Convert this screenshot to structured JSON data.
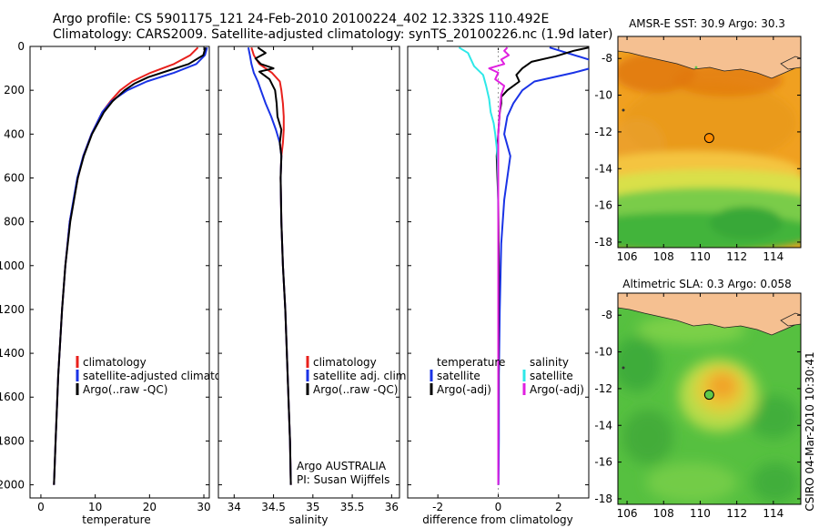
{
  "header": {
    "line1": "Argo profile: CS 5901175_121 24-Feb-2010 20100224_402 12.332S 110.492E",
    "line2": "Climatology: CARS2009. Satellite-adjusted climatology: synTS_20100226.nc (1.9d later)"
  },
  "credit": "CSIRO 04-Mar-2010 10:30:41",
  "colors": {
    "climatology": "#e8201c",
    "satellite": "#1a33e6",
    "argo": "#000000",
    "sal_satellite": "#2ee8e8",
    "sal_argo": "#e020e0",
    "land": "#f5c091"
  },
  "chart_data": [
    {
      "type": "line",
      "id": "temperature",
      "xlabel": "temperature",
      "ylabel": "",
      "xlim": [
        -2,
        31
      ],
      "ylim": [
        2060,
        0
      ],
      "xticks": [
        0,
        10,
        20,
        30
      ],
      "xticklabels": [
        "0",
        "10",
        "20",
        "30"
      ],
      "yticks": [
        0,
        200,
        400,
        600,
        800,
        1000,
        1200,
        1400,
        1600,
        1800,
        2000
      ],
      "yticklabels": [
        "0",
        "200",
        "400",
        "600",
        "800",
        "1000",
        "1200",
        "1400",
        "1600",
        "1800",
        "2000"
      ],
      "legend": [
        "climatology",
        "satellite-adjusted climatology",
        "Argo(..raw -QC)"
      ],
      "series": [
        {
          "name": "climatology",
          "color": "#e8201c",
          "depth": [
            5,
            40,
            80,
            120,
            160,
            200,
            250,
            300,
            400,
            500,
            600,
            800,
            1000,
            1200,
            1500,
            1800,
            2000
          ],
          "values": [
            28.9,
            27.5,
            24.5,
            20.2,
            16.8,
            14.6,
            12.8,
            11.3,
            9.3,
            7.8,
            6.8,
            5.3,
            4.5,
            3.9,
            3.2,
            2.7,
            2.4
          ]
        },
        {
          "name": "satellite-adjusted climatology",
          "color": "#1a33e6",
          "depth": [
            5,
            40,
            80,
            120,
            160,
            200,
            250,
            300,
            400,
            500,
            600,
            800,
            1000,
            1200,
            1500,
            1800,
            2000
          ],
          "values": [
            30.6,
            30.2,
            28.6,
            24.5,
            19.5,
            15.9,
            13.0,
            11.3,
            9.3,
            7.8,
            6.7,
            5.3,
            4.5,
            3.9,
            3.2,
            2.7,
            2.4
          ]
        },
        {
          "name": "Argo(..raw -QC)",
          "color": "#000000",
          "depth": [
            5,
            40,
            80,
            110,
            140,
            170,
            200,
            250,
            300,
            400,
            500,
            600,
            800,
            1000,
            1200,
            1500,
            1800,
            2000
          ],
          "values": [
            30.3,
            29.9,
            27.2,
            23.5,
            19.8,
            17.2,
            15.4,
            13.2,
            11.6,
            9.4,
            7.9,
            6.8,
            5.4,
            4.5,
            3.9,
            3.2,
            2.7,
            2.4
          ]
        }
      ]
    },
    {
      "type": "line",
      "id": "salinity",
      "xlabel": "salinity",
      "xlim": [
        33.8,
        36.1
      ],
      "ylim": [
        2060,
        0
      ],
      "xticks": [
        34,
        34.5,
        35,
        35.5,
        36
      ],
      "xticklabels": [
        "34",
        "34.5",
        "35",
        "35.5",
        "36"
      ],
      "legend": [
        "climatology",
        "satellite adj. clim.",
        "Argo(..raw -QC)"
      ],
      "annotation": [
        "Argo AUSTRALIA",
        "PI: Susan Wijffels"
      ],
      "series": [
        {
          "name": "climatology",
          "color": "#e8201c",
          "depth": [
            5,
            40,
            80,
            120,
            160,
            200,
            260,
            320,
            380,
            440,
            500,
            600,
            800,
            1000,
            1200,
            1500,
            1800,
            2000
          ],
          "values": [
            34.22,
            34.25,
            34.32,
            34.48,
            34.58,
            34.6,
            34.62,
            34.63,
            34.63,
            34.62,
            34.6,
            34.59,
            34.6,
            34.62,
            34.65,
            34.68,
            34.71,
            34.72
          ]
        },
        {
          "name": "satellite adj. clim.",
          "color": "#1a33e6",
          "depth": [
            5,
            40,
            80,
            120,
            160,
            200,
            260,
            320,
            380,
            440,
            500,
            600,
            800,
            1000,
            1200,
            1500,
            1800,
            2000
          ],
          "values": [
            34.18,
            34.2,
            34.22,
            34.25,
            34.3,
            34.34,
            34.4,
            34.47,
            34.53,
            34.58,
            34.6,
            34.59,
            34.6,
            34.62,
            34.65,
            34.68,
            34.71,
            34.72
          ]
        },
        {
          "name": "Argo(..raw -QC)",
          "color": "#000000",
          "depth": [
            5,
            30,
            55,
            80,
            100,
            115,
            150,
            200,
            260,
            320,
            380,
            440,
            500,
            600,
            800,
            1000,
            1200,
            1500,
            1800,
            2000
          ],
          "values": [
            34.3,
            34.4,
            34.27,
            34.34,
            34.5,
            34.32,
            34.45,
            34.52,
            34.54,
            34.55,
            34.6,
            34.58,
            34.6,
            34.59,
            34.6,
            34.62,
            34.65,
            34.68,
            34.71,
            34.72
          ]
        }
      ]
    },
    {
      "type": "line",
      "id": "difference",
      "xlabel": "difference from climatology",
      "xlim": [
        -3,
        3
      ],
      "ylim": [
        2060,
        0
      ],
      "xticks": [
        -2,
        0,
        2
      ],
      "xticklabels": [
        "-2",
        "0",
        "2"
      ],
      "legend_titles": [
        "temperature",
        "salinity"
      ],
      "legend": [
        "satellite",
        "Argo(-adj)",
        "satellite",
        "Argo(-adj)"
      ],
      "series": [
        {
          "name": "temperature satellite",
          "color": "#1a33e6",
          "depth": [
            5,
            60,
            90,
            120,
            160,
            200,
            260,
            320,
            400,
            500,
            700,
            900,
            1200,
            1500,
            1800,
            2000
          ],
          "values": [
            1.7,
            3.0,
            3.3,
            2.5,
            1.2,
            0.8,
            0.5,
            0.3,
            0.2,
            0.4,
            0.2,
            0.1,
            0.05,
            0.02,
            0.02,
            0.01
          ]
        },
        {
          "name": "temperature Argo(-adj)",
          "color": "#000000",
          "depth": [
            5,
            20,
            45,
            70,
            100,
            130,
            160,
            200,
            230,
            260,
            300,
            400,
            500,
            700,
            1000,
            1400,
            1800,
            2000
          ],
          "values": [
            3.0,
            2.5,
            1.9,
            1.1,
            0.8,
            0.6,
            0.7,
            0.3,
            0.1,
            0.1,
            0.05,
            0.0,
            -0.05,
            0.0,
            0.02,
            0.01,
            0.0,
            0.0
          ]
        },
        {
          "name": "salinity satellite",
          "color": "#2ee8e8",
          "depth": [
            5,
            30,
            60,
            90,
            130,
            180,
            240,
            300,
            350,
            400,
            460,
            520,
            600,
            800,
            1200,
            1600,
            2000
          ],
          "values": [
            -1.3,
            -1.0,
            -0.9,
            -0.8,
            -0.5,
            -0.4,
            -0.3,
            -0.25,
            -0.15,
            -0.1,
            -0.05,
            -0.02,
            -0.01,
            0.0,
            0.0,
            0.0,
            0.0
          ]
        },
        {
          "name": "salinity Argo(-adj)",
          "color": "#e020e0",
          "depth": [
            5,
            20,
            40,
            60,
            80,
            100,
            120,
            150,
            180,
            220,
            300,
            400,
            500,
            700,
            1000,
            1500,
            2000
          ],
          "values": [
            0.3,
            0.2,
            0.35,
            0.1,
            0.2,
            -0.3,
            0.0,
            -0.1,
            0.2,
            0.1,
            0.05,
            0.0,
            0.0,
            0.0,
            0.0,
            0.0,
            0.0
          ]
        }
      ]
    },
    {
      "type": "heatmap",
      "id": "sst_map",
      "title": "AMSR-E SST: 30.9 Argo: 30.3",
      "xlim": [
        105.5,
        115.5
      ],
      "ylim": [
        -18.3,
        -6.8
      ],
      "xticks": [
        106,
        108,
        110,
        112,
        114
      ],
      "xticklabels": [
        "106",
        "108",
        "110",
        "112",
        "114"
      ],
      "yticks": [
        -8,
        -10,
        -12,
        -14,
        -16,
        -18
      ],
      "yticklabels": [
        "-8",
        "-10",
        "-12",
        "-14",
        "-16",
        "-18"
      ],
      "marker": {
        "lon": 110.492,
        "lat": -12.332,
        "color": "#ff8c00"
      }
    },
    {
      "type": "heatmap",
      "id": "sla_map",
      "title": "Altimetric SLA: 0.3 Argo: 0.058",
      "xlim": [
        105.5,
        115.5
      ],
      "ylim": [
        -18.3,
        -6.8
      ],
      "xticks": [
        106,
        108,
        110,
        112,
        114
      ],
      "xticklabels": [
        "106",
        "108",
        "110",
        "112",
        "114"
      ],
      "yticks": [
        -8,
        -10,
        -12,
        -14,
        -16,
        -18
      ],
      "yticklabels": [
        "-8",
        "-10",
        "-12",
        "-14",
        "-16",
        "-18"
      ],
      "marker": {
        "lon": 110.492,
        "lat": -12.332,
        "color": "#5fc94a"
      }
    }
  ]
}
